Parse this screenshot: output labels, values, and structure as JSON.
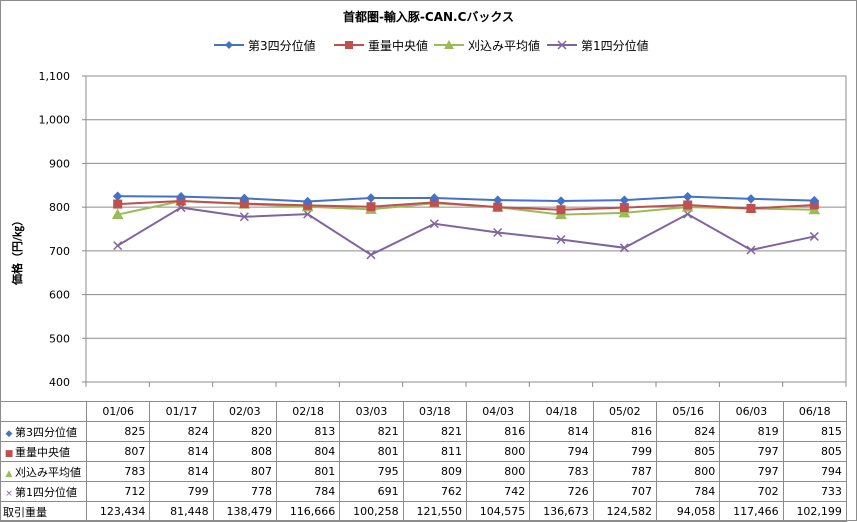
{
  "chart_data": {
    "type": "line",
    "title": "首都圏-輸入豚-CAN.Cバックス",
    "ylabel": "価格（円/㎏）",
    "ylim": [
      400,
      1100
    ],
    "yticks": [
      "400",
      "500",
      "600",
      "700",
      "800",
      "900",
      "1,000",
      "1,100"
    ],
    "grid": true,
    "legend_position": "top",
    "categories": [
      "01/06",
      "01/17",
      "02/03",
      "02/18",
      "03/03",
      "03/18",
      "04/03",
      "04/18",
      "05/02",
      "05/16",
      "06/03",
      "06/18"
    ],
    "series": [
      {
        "name": "第3四分位値",
        "color": "#4472C4",
        "marker": "diamond",
        "marker_glyph": "◆",
        "values": [
          825,
          824,
          820,
          813,
          821,
          821,
          816,
          814,
          816,
          824,
          819,
          815
        ]
      },
      {
        "name": "重量中央値",
        "color": "#C0504D",
        "marker": "square",
        "marker_glyph": "■",
        "values": [
          807,
          814,
          808,
          804,
          801,
          811,
          800,
          794,
          799,
          805,
          797,
          805
        ]
      },
      {
        "name": "刈込み平均値",
        "color": "#9BBB59",
        "marker": "triangle",
        "marker_glyph": "▲",
        "values": [
          783,
          814,
          807,
          801,
          795,
          809,
          800,
          783,
          787,
          800,
          797,
          794
        ]
      },
      {
        "name": "第1四分位値",
        "color": "#8064A2",
        "marker": "x",
        "marker_glyph": "×",
        "values": [
          712,
          799,
          778,
          784,
          691,
          762,
          742,
          726,
          707,
          784,
          702,
          733
        ]
      }
    ],
    "volume": {
      "name": "取引重量",
      "values": [
        "123,434",
        "81,448",
        "138,479",
        "116,666",
        "100,258",
        "121,550",
        "104,575",
        "136,673",
        "124,582",
        "94,058",
        "117,466",
        "102,199"
      ]
    }
  }
}
